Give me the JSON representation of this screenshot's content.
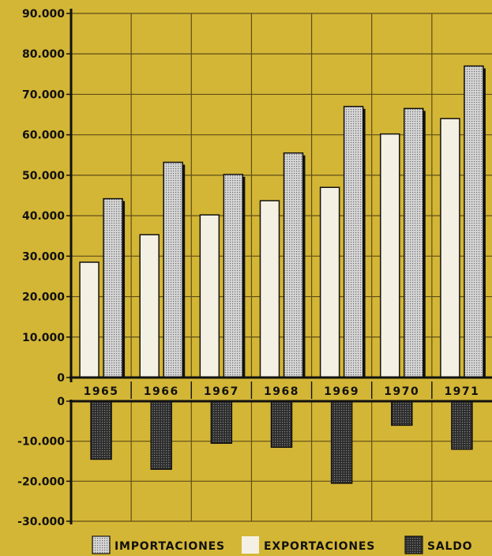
{
  "chart_data": {
    "type": "bar",
    "categories": [
      "1965",
      "1966",
      "1967",
      "1968",
      "1969",
      "1970",
      "1971"
    ],
    "series": [
      {
        "name": "EXPORTACIONES",
        "values": [
          28500,
          35300,
          40200,
          43700,
          47000,
          60200,
          64000
        ],
        "color": "#f4f1e4",
        "pattern": "plain"
      },
      {
        "name": "IMPORTACIONES",
        "values": [
          44200,
          53200,
          50200,
          55500,
          67000,
          66500,
          77000
        ],
        "color": "#c8c8c8",
        "pattern": "dotted-light"
      },
      {
        "name": "SALDO",
        "values": [
          -14500,
          -17000,
          -10500,
          -11500,
          -20500,
          -6000,
          -12000
        ],
        "color": "#3c3c3c",
        "pattern": "dotted-dark"
      }
    ],
    "y_upper_ticks": [
      "90.000",
      "80.000",
      "70.000",
      "60.000",
      "50.000",
      "40.000",
      "30.000",
      "20.000",
      "10.000",
      "0"
    ],
    "y_upper_values": [
      90000,
      80000,
      70000,
      60000,
      50000,
      40000,
      30000,
      20000,
      10000,
      0
    ],
    "y_lower_ticks": [
      "0",
      "-10.000",
      "-20.000",
      "-30.000"
    ],
    "y_lower_values": [
      0,
      -10000,
      -20000,
      -30000
    ],
    "ylim_upper": [
      0,
      90000
    ],
    "ylim_lower": [
      -30000,
      0
    ],
    "grid": true,
    "legend_placement": "bottom",
    "legend": [
      "IMPORTACIONES",
      "EXPORTACIONES",
      "SALDO"
    ],
    "background_color": "#d4b636",
    "grid_color": "#5f4d17"
  }
}
